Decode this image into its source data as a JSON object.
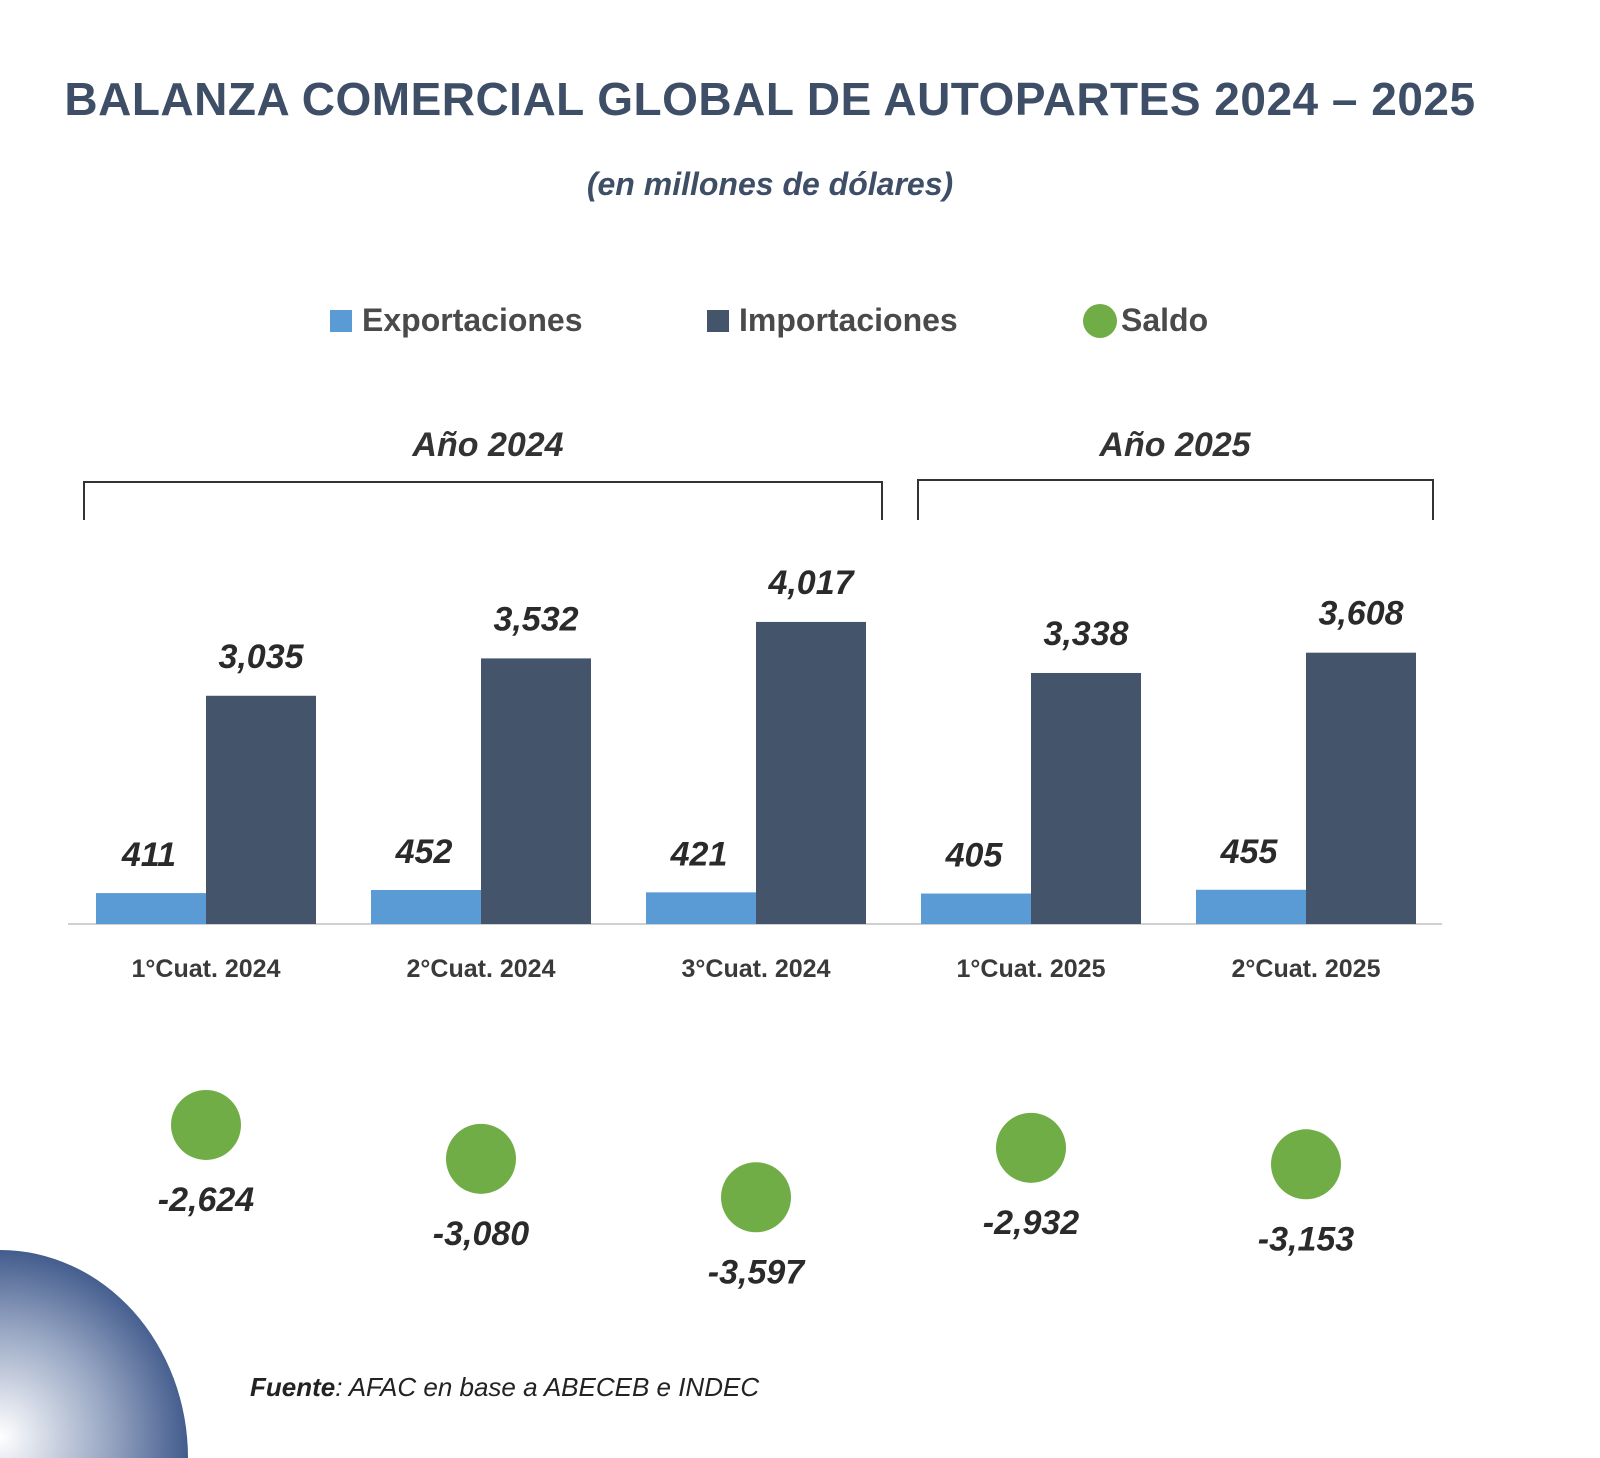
{
  "chart_data": {
    "type": "bar",
    "title": "BALANZA COMERCIAL GLOBAL DE AUTOPARTES 2024 – 2025",
    "subtitle": "(en millones de dólares)",
    "categories": [
      "1°Cuat. 2024",
      "2°Cuat. 2024",
      "3°Cuat. 2024",
      "1°Cuat. 2025",
      "2°Cuat. 2025"
    ],
    "groups": [
      {
        "label": "Año 2024",
        "span": [
          0,
          2
        ]
      },
      {
        "label": "Año 2025",
        "span": [
          3,
          4
        ]
      }
    ],
    "series": [
      {
        "name": "Exportaciones",
        "color": "#5b9bd5",
        "values": [
          411,
          452,
          421,
          405,
          455
        ],
        "labels": [
          "411",
          "452",
          "421",
          "405",
          "455"
        ]
      },
      {
        "name": "Importaciones",
        "color": "#44546a",
        "values": [
          3035,
          3532,
          4017,
          3338,
          3608
        ],
        "labels": [
          "3,035",
          "3,532",
          "4,017",
          "3,338",
          "3,608"
        ]
      },
      {
        "name": "Saldo",
        "color": "#70ad47",
        "values": [
          -2624,
          -3080,
          -3597,
          -2932,
          -3153
        ],
        "labels": [
          "-2,624",
          "-3,080",
          "-3,597",
          "-2,932",
          "-3,153"
        ]
      }
    ],
    "legend_position": "top-center",
    "grid": false
  },
  "source": {
    "label": "Fuente",
    "text": ": AFAC en base a ABECEB e INDEC"
  }
}
